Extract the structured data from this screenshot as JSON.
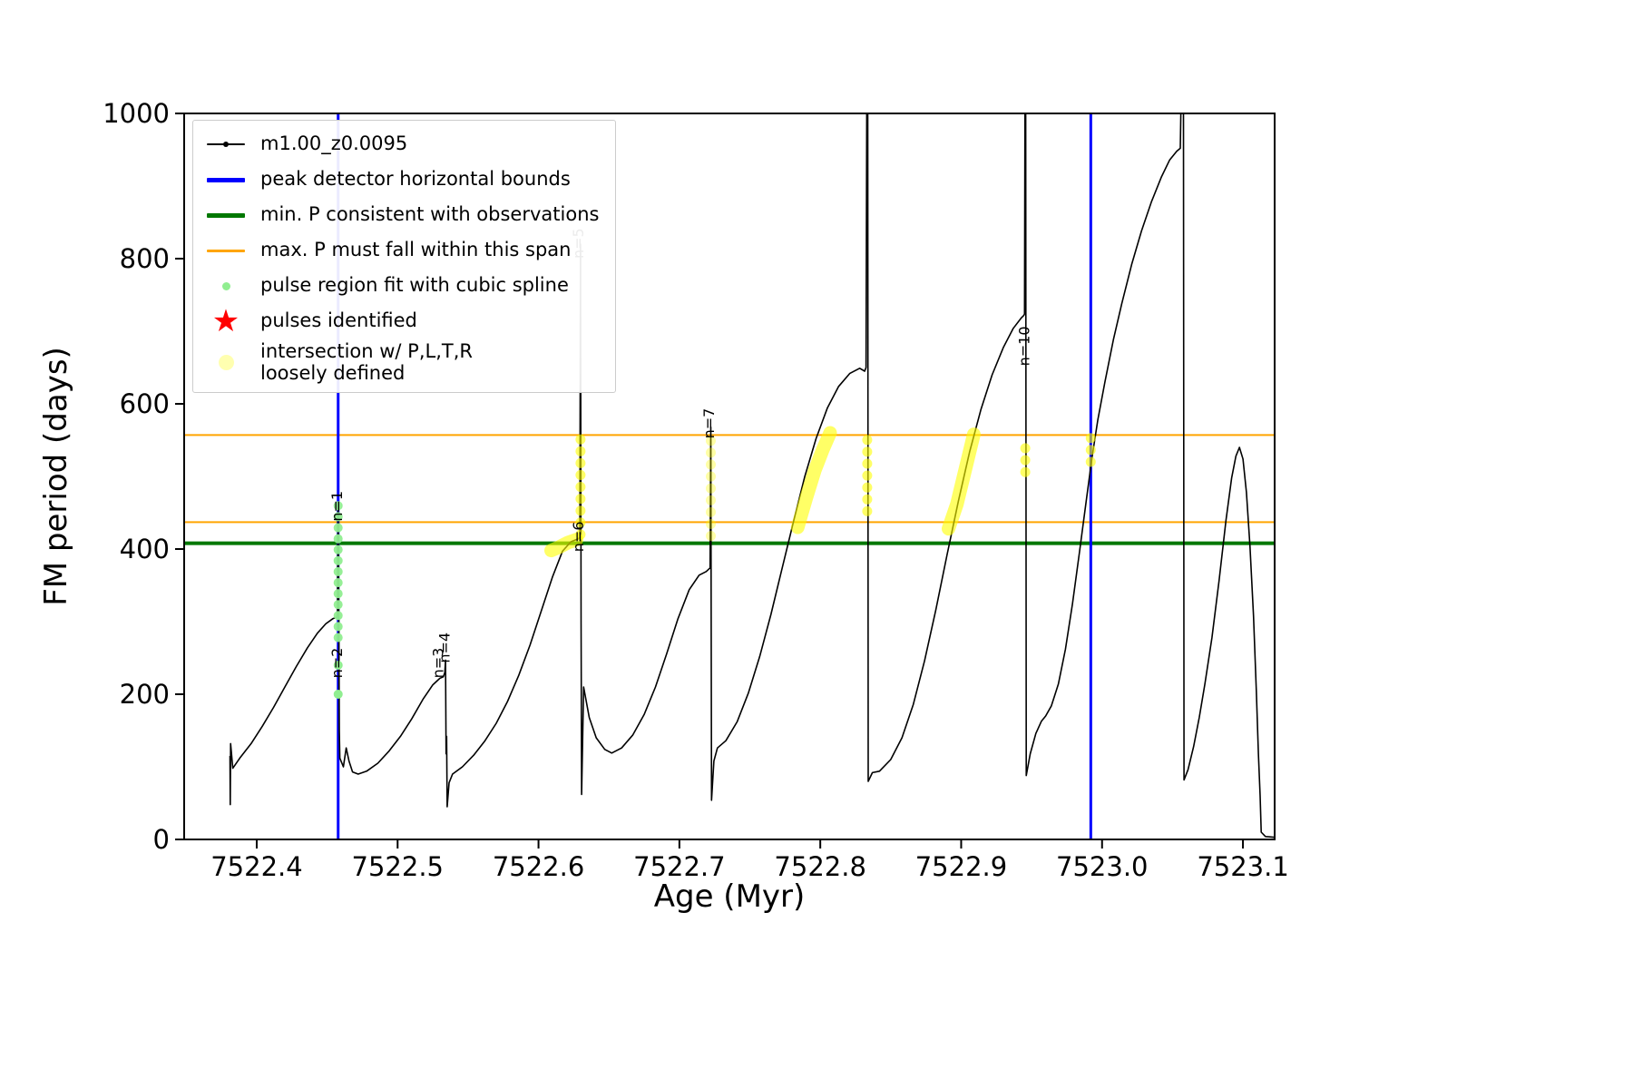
{
  "figure": {
    "background": "#ffffff"
  },
  "legend": {
    "items": [
      {
        "label": "m1.00_z0.0095",
        "marker": "line-dot",
        "color": "#000000"
      },
      {
        "label": "peak detector horizontal bounds",
        "marker": "thick-line",
        "color": "#0000ff"
      },
      {
        "label": "min. P consistent with observations",
        "marker": "thick-line",
        "color": "#007800"
      },
      {
        "label": "max. P must fall within this span",
        "marker": "line",
        "color": "#ffa500"
      },
      {
        "label": "pulse region fit with cubic spline",
        "marker": "small-dot",
        "color": "#90ee90"
      },
      {
        "label": "pulses identified",
        "marker": "star",
        "color": "#ff0000"
      },
      {
        "label": "intersection w/ P,L,T,R\nloosely defined",
        "marker": "big-dot",
        "color": "#ffffb0"
      }
    ]
  },
  "chart_data": {
    "type": "line",
    "title": "",
    "xlabel": "Age (Myr)",
    "ylabel": "FM period (days)",
    "xlim": [
      7522.3485,
      7523.1225
    ],
    "ylim": [
      0,
      1000
    ],
    "grid": false,
    "legend_position": "upper left",
    "xticks": [
      7522.4,
      7522.5,
      7522.6,
      7522.7,
      7522.8,
      7522.9,
      7523.0,
      7523.1
    ],
    "xtick_labels": [
      "7522.4",
      "7522.5",
      "7522.6",
      "7522.7",
      "7522.8",
      "7522.9",
      "7523.0",
      "7523.1"
    ],
    "yticks": [
      0,
      200,
      400,
      600,
      800,
      1000
    ],
    "ytick_labels": [
      "0",
      "200",
      "400",
      "600",
      "800",
      "1000"
    ],
    "track": {
      "name": "m1.00_z0.0095",
      "color": "#000000",
      "points": [
        [
          7522.381,
          115
        ],
        [
          7522.3812,
          48
        ],
        [
          7522.3815,
          132
        ],
        [
          7522.383,
          98
        ],
        [
          7522.388,
          112
        ],
        [
          7522.396,
          132
        ],
        [
          7522.404,
          156
        ],
        [
          7522.412,
          182
        ],
        [
          7522.42,
          210
        ],
        [
          7522.428,
          238
        ],
        [
          7522.436,
          264
        ],
        [
          7522.443,
          284
        ],
        [
          7522.449,
          297
        ],
        [
          7522.454,
          304
        ],
        [
          7522.4567,
          306
        ],
        [
          7522.4573,
          310
        ],
        [
          7522.4578,
          462
        ],
        [
          7522.4583,
          300
        ],
        [
          7522.4586,
          150
        ],
        [
          7522.459,
          112
        ],
        [
          7522.4615,
          100
        ],
        [
          7522.4635,
          126
        ],
        [
          7522.4655,
          108
        ],
        [
          7522.468,
          93
        ],
        [
          7522.472,
          90
        ],
        [
          7522.478,
          94
        ],
        [
          7522.486,
          105
        ],
        [
          7522.494,
          122
        ],
        [
          7522.502,
          142
        ],
        [
          7522.51,
          166
        ],
        [
          7522.518,
          193
        ],
        [
          7522.525,
          213
        ],
        [
          7522.53,
          222
        ],
        [
          7522.5325,
          224
        ],
        [
          7522.5335,
          230
        ],
        [
          7522.534,
          247
        ],
        [
          7522.5344,
          118
        ],
        [
          7522.5348,
          142
        ],
        [
          7522.5352,
          45
        ],
        [
          7522.5365,
          78
        ],
        [
          7522.539,
          90
        ],
        [
          7522.546,
          100
        ],
        [
          7522.554,
          116
        ],
        [
          7522.562,
          136
        ],
        [
          7522.57,
          160
        ],
        [
          7522.578,
          190
        ],
        [
          7522.586,
          226
        ],
        [
          7522.594,
          268
        ],
        [
          7522.602,
          315
        ],
        [
          7522.61,
          362
        ],
        [
          7522.617,
          397
        ],
        [
          7522.623,
          410
        ],
        [
          7522.628,
          414
        ],
        [
          7522.6293,
          416
        ],
        [
          7522.6298,
          820
        ],
        [
          7522.6302,
          300
        ],
        [
          7522.6306,
          62
        ],
        [
          7522.632,
          210
        ],
        [
          7522.636,
          168
        ],
        [
          7522.641,
          140
        ],
        [
          7522.647,
          124
        ],
        [
          7522.652,
          119
        ],
        [
          7522.659,
          126
        ],
        [
          7522.667,
          144
        ],
        [
          7522.675,
          172
        ],
        [
          7522.683,
          210
        ],
        [
          7522.691,
          256
        ],
        [
          7522.699,
          304
        ],
        [
          7522.707,
          344
        ],
        [
          7522.714,
          364
        ],
        [
          7522.719,
          369
        ],
        [
          7522.7218,
          374
        ],
        [
          7522.7223,
          568
        ],
        [
          7522.7228,
          54
        ],
        [
          7522.7245,
          108
        ],
        [
          7522.727,
          126
        ],
        [
          7522.733,
          136
        ],
        [
          7522.741,
          162
        ],
        [
          7522.749,
          202
        ],
        [
          7522.757,
          252
        ],
        [
          7522.765,
          310
        ],
        [
          7522.773,
          374
        ],
        [
          7522.781,
          438
        ],
        [
          7522.789,
          500
        ],
        [
          7522.797,
          552
        ],
        [
          7522.805,
          594
        ],
        [
          7522.813,
          624
        ],
        [
          7522.821,
          642
        ],
        [
          7522.828,
          649
        ],
        [
          7522.8315,
          645
        ],
        [
          7522.8325,
          650
        ],
        [
          7522.833,
          1008
        ],
        [
          7522.8337,
          1008
        ],
        [
          7522.834,
          80
        ],
        [
          7522.837,
          92
        ],
        [
          7522.842,
          94
        ],
        [
          7522.85,
          110
        ],
        [
          7522.858,
          140
        ],
        [
          7522.866,
          186
        ],
        [
          7522.874,
          246
        ],
        [
          7522.882,
          316
        ],
        [
          7522.89,
          392
        ],
        [
          7522.898,
          466
        ],
        [
          7522.906,
          534
        ],
        [
          7522.914,
          592
        ],
        [
          7522.922,
          640
        ],
        [
          7522.93,
          678
        ],
        [
          7522.937,
          704
        ],
        [
          7522.9425,
          718
        ],
        [
          7522.9445,
          722
        ],
        [
          7522.945,
          724
        ],
        [
          7522.9453,
          1008
        ],
        [
          7522.9458,
          1008
        ],
        [
          7522.9462,
          88
        ],
        [
          7522.949,
          118
        ],
        [
          7522.953,
          146
        ],
        [
          7522.957,
          163
        ],
        [
          7522.96,
          170
        ],
        [
          7522.964,
          184
        ],
        [
          7522.969,
          214
        ],
        [
          7522.974,
          262
        ],
        [
          7522.979,
          324
        ],
        [
          7522.984,
          396
        ],
        [
          7522.989,
          470
        ],
        [
          7522.993,
          528
        ],
        [
          7522.997,
          578
        ],
        [
          7523.002,
          630
        ],
        [
          7523.008,
          688
        ],
        [
          7523.014,
          738
        ],
        [
          7523.021,
          792
        ],
        [
          7523.028,
          838
        ],
        [
          7523.035,
          878
        ],
        [
          7523.042,
          912
        ],
        [
          7523.048,
          936
        ],
        [
          7523.053,
          948
        ],
        [
          7523.0555,
          952
        ],
        [
          7523.056,
          1008
        ],
        [
          7523.0578,
          1008
        ],
        [
          7523.0582,
          82
        ],
        [
          7523.061,
          96
        ],
        [
          7523.065,
          128
        ],
        [
          7523.069,
          168
        ],
        [
          7523.073,
          214
        ],
        [
          7523.078,
          278
        ],
        [
          7523.083,
          356
        ],
        [
          7523.088,
          440
        ],
        [
          7523.092,
          498
        ],
        [
          7523.095,
          528
        ],
        [
          7523.0975,
          540
        ],
        [
          7523.1,
          524
        ],
        [
          7523.1025,
          478
        ],
        [
          7523.105,
          404
        ],
        [
          7523.1075,
          308
        ],
        [
          7523.1095,
          205
        ],
        [
          7523.111,
          118
        ],
        [
          7523.1122,
          60
        ],
        [
          7523.113,
          10
        ],
        [
          7523.116,
          4
        ],
        [
          7523.122,
          3
        ],
        [
          7523.132,
          3
        ],
        [
          7523.145,
          3
        ]
      ]
    },
    "vlines": {
      "name": "peak detector horizontal bounds",
      "color": "#0000ff",
      "width": 3,
      "x": [
        7522.4578,
        7522.992
      ]
    },
    "hlines": [
      {
        "name": "min. P consistent with observations",
        "color": "#007800",
        "width": 4,
        "y": 408
      },
      {
        "name": "max. P must fall within this span",
        "color": "#ffa500",
        "width": 2,
        "y": 557
      },
      {
        "name": "max. P must fall within this span",
        "color": "#ffa500",
        "width": 2,
        "y": 437
      }
    ],
    "pulse_region": {
      "name": "pulse region fit with cubic spline",
      "color": "#90ee90",
      "strip": [
        [
          7522.4578,
          278
        ],
        [
          7522.4578,
          460
        ]
      ],
      "dots": [
        [
          7522.4578,
          240
        ],
        [
          7522.4578,
          200
        ]
      ]
    },
    "pulses_identified": {
      "name": "pulses identified",
      "color": "#ff0000",
      "marker": "star",
      "points": []
    },
    "intersections": {
      "name": "intersection w/ P,L,T,R loosely defined",
      "color": "#ffff00",
      "clusters": [
        {
          "form": "band",
          "points": [
            [
              7522.609,
              398
            ],
            [
              7522.615,
              403
            ],
            [
              7522.621,
              409
            ],
            [
              7522.627,
              413
            ]
          ]
        },
        {
          "form": "strip",
          "points": [
            [
              7522.6298,
              420
            ],
            [
              7522.6298,
              558
            ]
          ]
        },
        {
          "form": "strip",
          "sparse": true,
          "points": [
            [
              7522.7223,
              418
            ],
            [
              7522.7223,
              562
            ]
          ]
        },
        {
          "form": "band",
          "points": [
            [
              7522.784,
              430
            ],
            [
              7522.79,
              470
            ],
            [
              7522.796,
              508
            ],
            [
              7522.802,
              538
            ],
            [
              7522.807,
              560
            ]
          ]
        },
        {
          "form": "strip",
          "points": [
            [
              7522.8333,
              452
            ],
            [
              7522.8333,
              560
            ]
          ]
        },
        {
          "form": "band",
          "points": [
            [
              7522.891,
              428
            ],
            [
              7522.897,
              462
            ],
            [
              7522.903,
              510
            ],
            [
              7522.909,
              558
            ]
          ]
        },
        {
          "form": "strip",
          "points": [
            [
              7522.9455,
              506
            ],
            [
              7522.9455,
              546
            ]
          ]
        },
        {
          "form": "strip",
          "points": [
            [
              7522.992,
              520
            ],
            [
              7522.992,
              562
            ]
          ]
        }
      ]
    },
    "annotations": [
      {
        "text": "n=1",
        "x": 7522.4605,
        "y": 438,
        "rotation": 90
      },
      {
        "text": "n=2",
        "x": 7522.4605,
        "y": 222,
        "rotation": 90
      },
      {
        "text": "n=3",
        "x": 7522.5322,
        "y": 222,
        "rotation": 90
      },
      {
        "text": "n=4",
        "x": 7522.5368,
        "y": 243,
        "rotation": 90
      },
      {
        "text": "n=5",
        "x": 7522.6318,
        "y": 800,
        "rotation": 90
      },
      {
        "text": "n=6",
        "x": 7522.6318,
        "y": 396,
        "rotation": 90
      },
      {
        "text": "n=7",
        "x": 7522.7245,
        "y": 552,
        "rotation": 90
      },
      {
        "text": "n=10",
        "x": 7522.9482,
        "y": 652,
        "rotation": 90
      }
    ]
  }
}
